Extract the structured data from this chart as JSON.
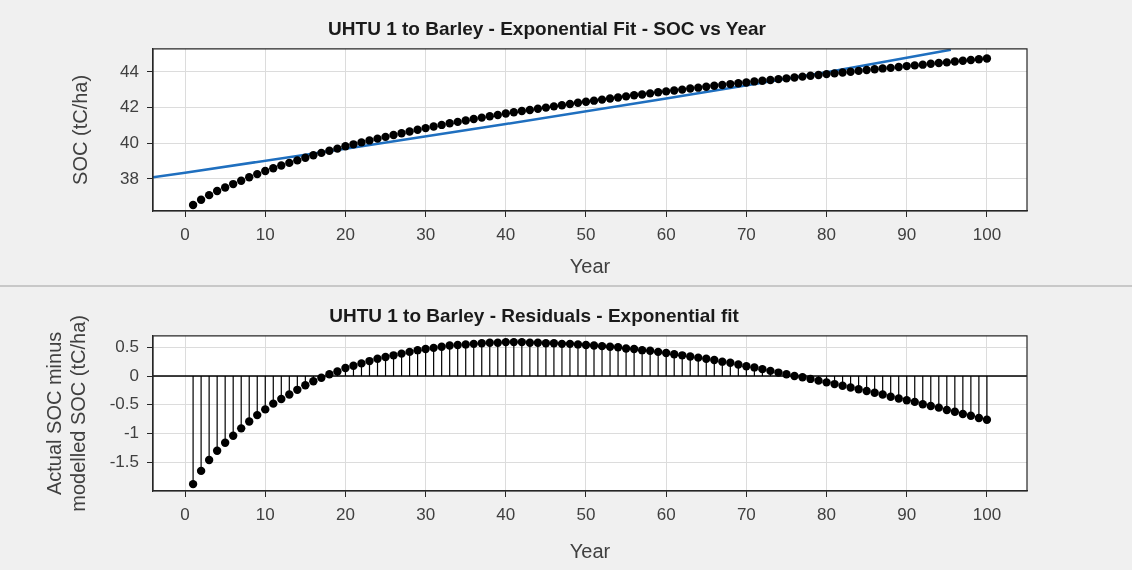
{
  "chart_data": [
    {
      "type": "scatter",
      "title": "UHTU 1 to Barley - Exponential Fit - SOC vs Year",
      "xlabel": "Year",
      "ylabel": "SOC (tC/ha)",
      "xlim": [
        -4,
        105
      ],
      "xticks": [
        0,
        10,
        20,
        30,
        40,
        50,
        60,
        70,
        80,
        90,
        100
      ],
      "ylim": [
        36.2,
        45.3
      ],
      "yticks": [
        38,
        40,
        42,
        44
      ],
      "grid": true,
      "legend": false,
      "marker": "circle",
      "x": [
        1,
        2,
        3,
        4,
        5,
        6,
        7,
        8,
        9,
        10,
        11,
        12,
        13,
        14,
        15,
        16,
        17,
        18,
        19,
        20,
        21,
        22,
        23,
        24,
        25,
        26,
        27,
        28,
        29,
        30,
        31,
        32,
        33,
        34,
        35,
        36,
        37,
        38,
        39,
        40,
        41,
        42,
        43,
        44,
        45,
        46,
        47,
        48,
        49,
        50,
        51,
        52,
        53,
        54,
        55,
        56,
        57,
        58,
        59,
        60,
        61,
        62,
        63,
        64,
        65,
        66,
        67,
        68,
        69,
        70,
        71,
        72,
        73,
        74,
        75,
        76,
        77,
        78,
        79,
        80,
        81,
        82,
        83,
        84,
        85,
        86,
        87,
        88,
        89,
        90,
        91,
        92,
        93,
        94,
        95,
        96,
        97,
        98,
        99,
        100
      ],
      "series": [
        {
          "color": "#000000",
          "values": [
            36.54,
            36.83,
            37.09,
            37.32,
            37.52,
            37.71,
            37.9,
            38.09,
            38.27,
            38.44,
            38.6,
            38.75,
            38.9,
            39.04,
            39.19,
            39.33,
            39.46,
            39.58,
            39.7,
            39.83,
            39.94,
            40.05,
            40.16,
            40.26,
            40.36,
            40.46,
            40.56,
            40.66,
            40.76,
            40.85,
            40.94,
            41.03,
            41.12,
            41.2,
            41.28,
            41.36,
            41.44,
            41.52,
            41.59,
            41.67,
            41.74,
            41.81,
            41.87,
            41.94,
            42.0,
            42.07,
            42.13,
            42.2,
            42.27,
            42.33,
            42.39,
            42.45,
            42.51,
            42.57,
            42.63,
            42.69,
            42.74,
            42.8,
            42.86,
            42.91,
            42.96,
            43.01,
            43.07,
            43.12,
            43.17,
            43.23,
            43.27,
            43.32,
            43.37,
            43.41,
            43.47,
            43.51,
            43.55,
            43.6,
            43.64,
            43.69,
            43.74,
            43.79,
            43.83,
            43.88,
            43.92,
            43.97,
            44.01,
            44.06,
            44.11,
            44.15,
            44.2,
            44.23,
            44.28,
            44.33,
            44.37,
            44.41,
            44.46,
            44.5,
            44.54,
            44.59,
            44.63,
            44.67,
            44.71,
            44.76
          ]
        },
        {
          "type": "line",
          "color": "#1f6fbf",
          "marker": "none",
          "line_style": "solid",
          "x": [
            -4,
            0,
            20,
            40,
            60,
            80,
            95.5
          ],
          "values": [
            38.09,
            38.35,
            39.69,
            41.08,
            42.51,
            43.99,
            45.25
          ]
        }
      ]
    },
    {
      "type": "lollipop",
      "title": "UHTU 1 to Barley - Residuals - Exponential fit",
      "xlabel": "Year",
      "ylabel": "Actual SOC minus\nmodelled SOC (tC/ha)",
      "xlim": [
        -4,
        105
      ],
      "xticks": [
        0,
        10,
        20,
        30,
        40,
        50,
        60,
        70,
        80,
        90,
        100
      ],
      "ylim": [
        -2.0,
        0.7
      ],
      "yticks": [
        -1.5,
        -1,
        -0.5,
        0,
        0.5
      ],
      "grid": true,
      "legend": false,
      "marker": "circle",
      "ref_lines": [
        {
          "axis": "y",
          "value": 0,
          "color": "#000000"
        }
      ],
      "x": [
        1,
        2,
        3,
        4,
        5,
        6,
        7,
        8,
        9,
        10,
        11,
        12,
        13,
        14,
        15,
        16,
        17,
        18,
        19,
        20,
        21,
        22,
        23,
        24,
        25,
        26,
        27,
        28,
        29,
        30,
        31,
        32,
        33,
        34,
        35,
        36,
        37,
        38,
        39,
        40,
        41,
        42,
        43,
        44,
        45,
        46,
        47,
        48,
        49,
        50,
        51,
        52,
        53,
        54,
        55,
        56,
        57,
        58,
        59,
        60,
        61,
        62,
        63,
        64,
        65,
        66,
        67,
        68,
        69,
        70,
        71,
        72,
        73,
        74,
        75,
        76,
        77,
        78,
        79,
        80,
        81,
        82,
        83,
        84,
        85,
        86,
        87,
        88,
        89,
        90,
        91,
        92,
        93,
        94,
        95,
        96,
        97,
        98,
        99,
        100
      ],
      "series": [
        {
          "color": "#000000",
          "values": [
            -1.88,
            -1.65,
            -1.46,
            -1.3,
            -1.16,
            -1.04,
            -0.91,
            -0.79,
            -0.68,
            -0.58,
            -0.48,
            -0.4,
            -0.32,
            -0.24,
            -0.16,
            -0.09,
            -0.03,
            0.03,
            0.08,
            0.14,
            0.18,
            0.22,
            0.26,
            0.3,
            0.33,
            0.36,
            0.39,
            0.42,
            0.45,
            0.47,
            0.49,
            0.51,
            0.53,
            0.54,
            0.55,
            0.56,
            0.57,
            0.58,
            0.58,
            0.59,
            0.59,
            0.59,
            0.58,
            0.58,
            0.57,
            0.57,
            0.56,
            0.56,
            0.55,
            0.54,
            0.53,
            0.52,
            0.51,
            0.5,
            0.48,
            0.47,
            0.45,
            0.44,
            0.42,
            0.4,
            0.38,
            0.36,
            0.34,
            0.32,
            0.3,
            0.28,
            0.25,
            0.23,
            0.2,
            0.17,
            0.15,
            0.12,
            0.09,
            0.06,
            0.03,
            0.0,
            -0.02,
            -0.05,
            -0.08,
            -0.11,
            -0.14,
            -0.17,
            -0.2,
            -0.23,
            -0.26,
            -0.29,
            -0.32,
            -0.36,
            -0.39,
            -0.42,
            -0.45,
            -0.49,
            -0.52,
            -0.55,
            -0.59,
            -0.62,
            -0.66,
            -0.69,
            -0.73,
            -0.76
          ]
        }
      ]
    }
  ]
}
